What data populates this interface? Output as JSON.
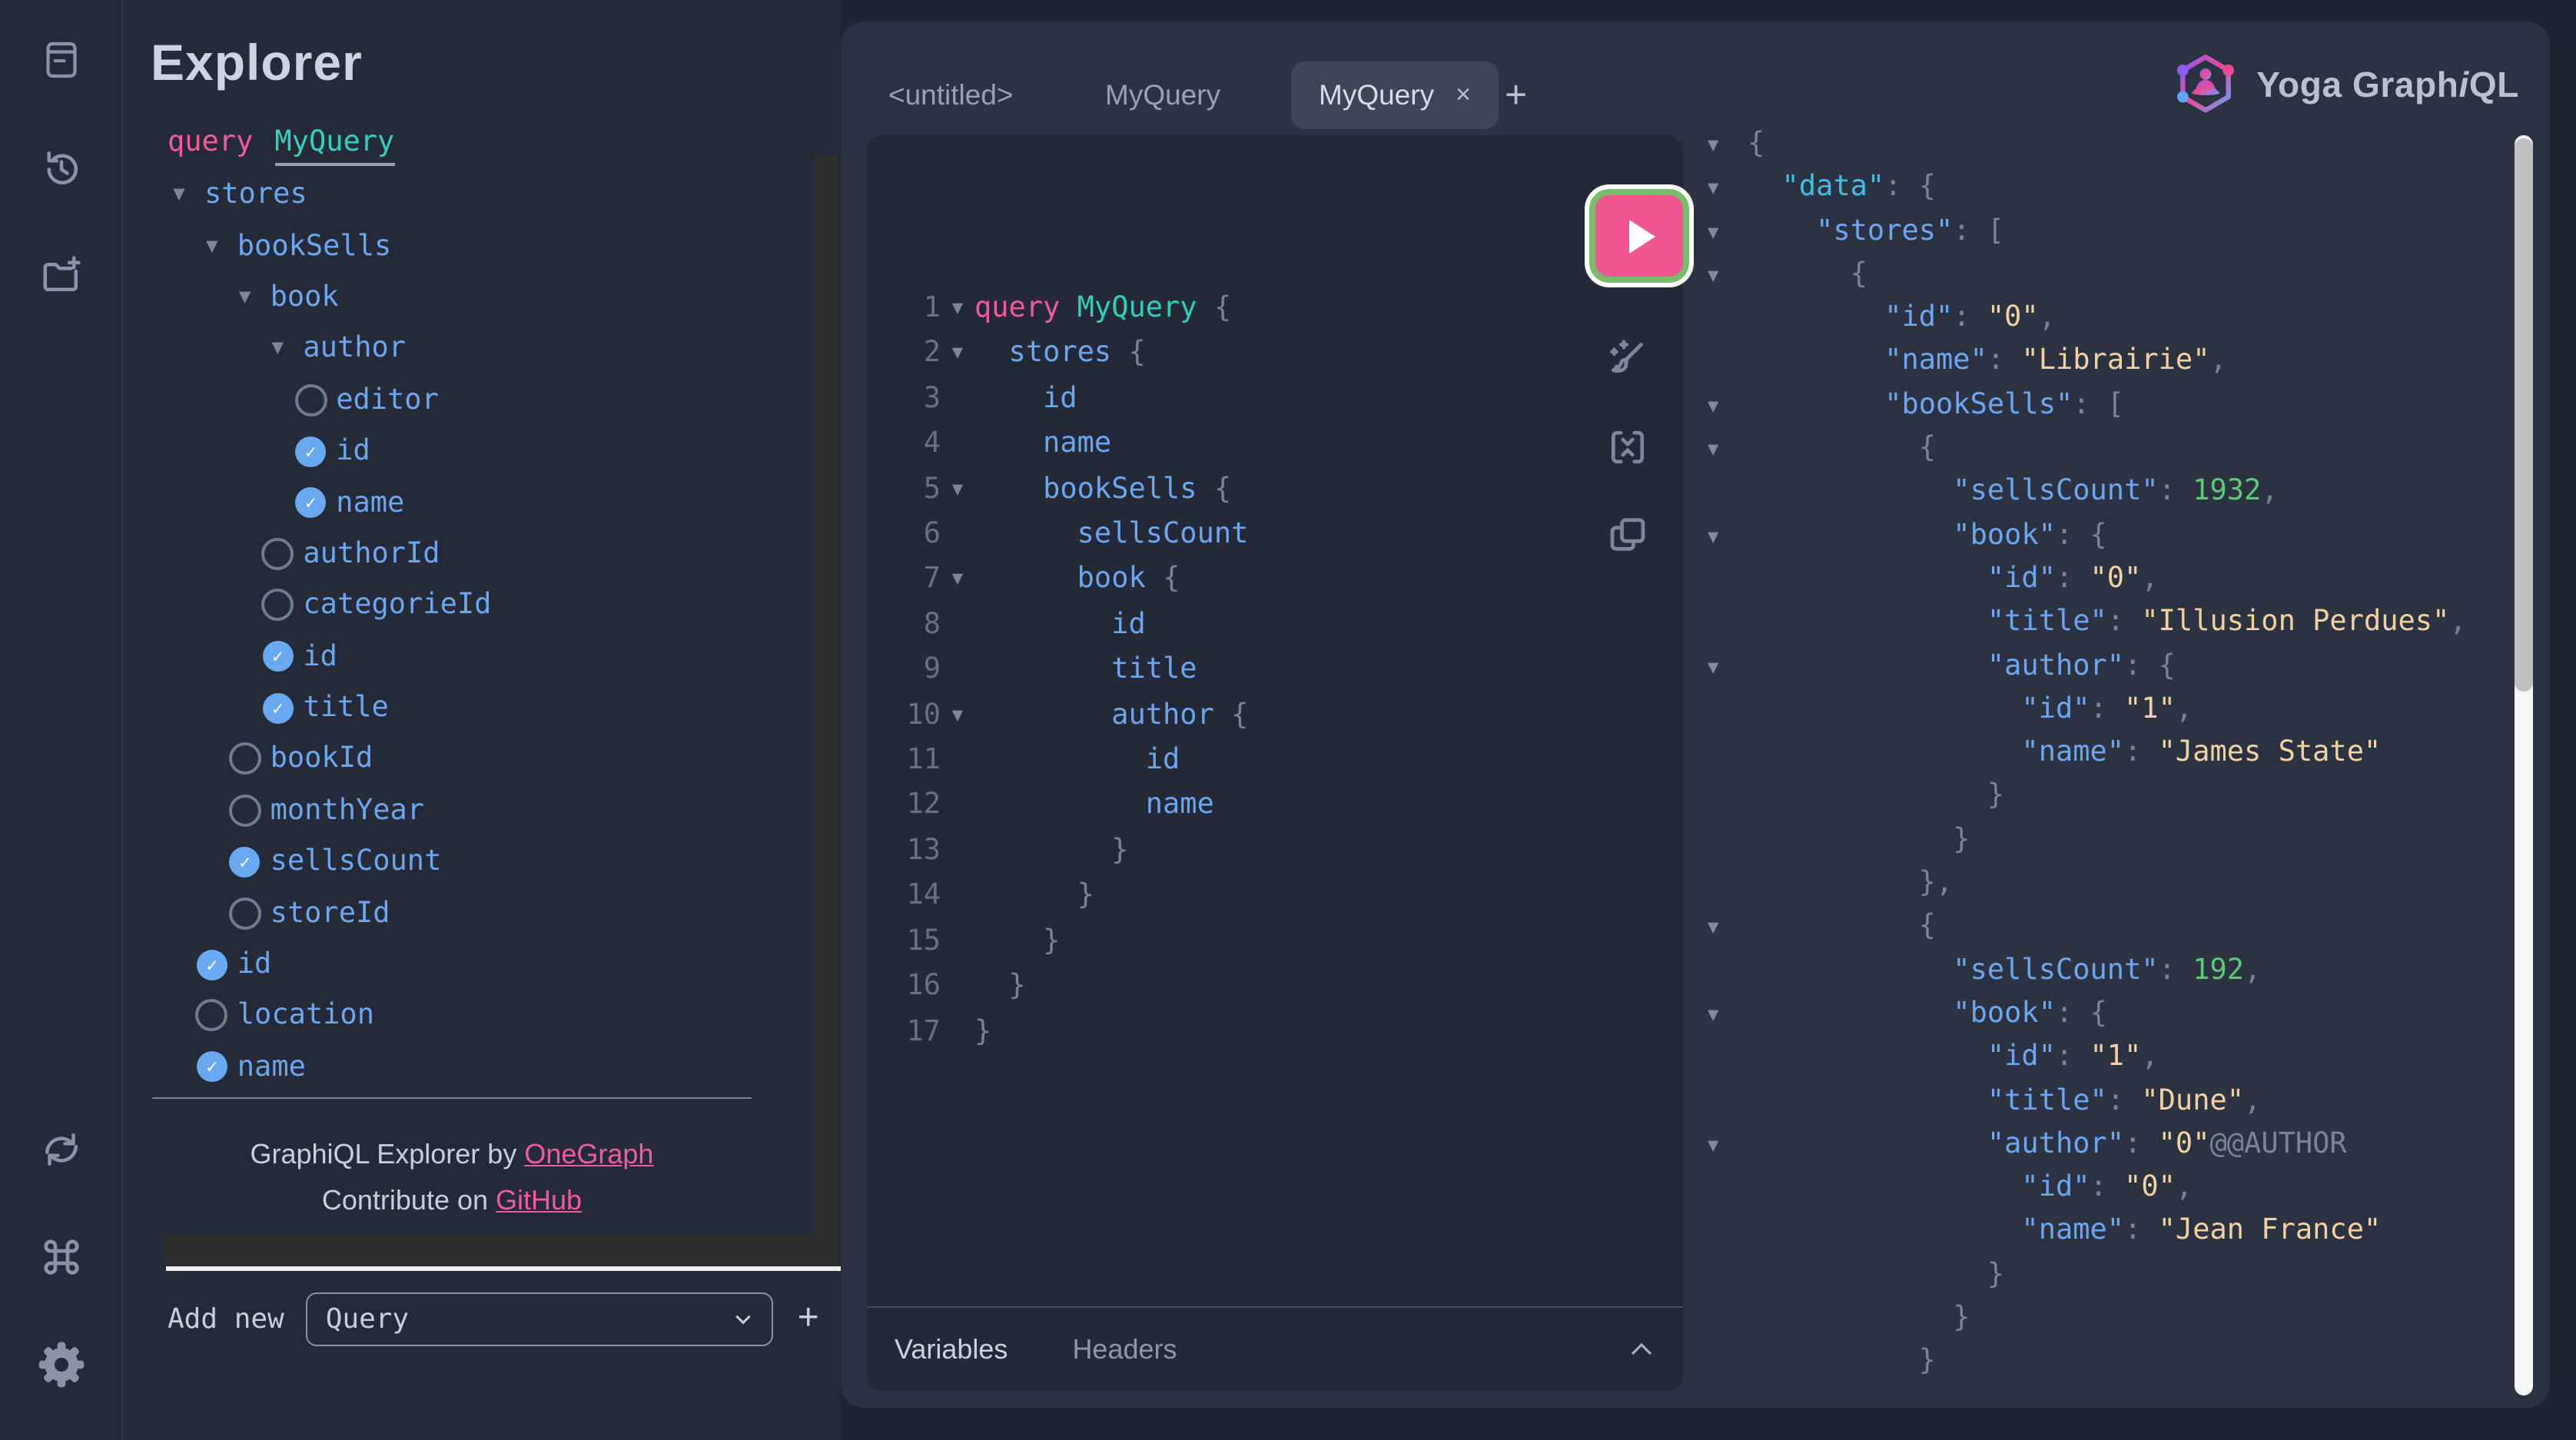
{
  "app": {
    "accent_pink": "#F25C96",
    "accent_teal": "#2FD0BD",
    "field_blue": "#6BA6EE",
    "string_tan": "#F2D1A0",
    "number_green": "#5FC878",
    "run_pink": "#F0558F",
    "run_green_ring": "#76BE69"
  },
  "sidebar": {
    "icons": [
      {
        "name": "docs-icon"
      },
      {
        "name": "history-icon"
      },
      {
        "name": "add-collection-icon"
      },
      {
        "name": "refetch-icon"
      },
      {
        "name": "shortcut-keys-icon"
      },
      {
        "name": "settings-icon"
      }
    ]
  },
  "explorer": {
    "title": "Explorer",
    "operation": {
      "keyword": "query",
      "name": "MyQuery"
    },
    "tree": [
      {
        "label": "stores",
        "depth": 0,
        "control": "expand"
      },
      {
        "label": "bookSells",
        "depth": 1,
        "control": "expand"
      },
      {
        "label": "book",
        "depth": 2,
        "control": "expand"
      },
      {
        "label": "author",
        "depth": 3,
        "control": "expand"
      },
      {
        "label": "editor",
        "depth": 4,
        "control": "radio"
      },
      {
        "label": "id",
        "depth": 4,
        "control": "check"
      },
      {
        "label": "name",
        "depth": 4,
        "control": "check"
      },
      {
        "label": "authorId",
        "depth": 3,
        "control": "radio"
      },
      {
        "label": "categorieId",
        "depth": 3,
        "control": "radio"
      },
      {
        "label": "id",
        "depth": 3,
        "control": "check"
      },
      {
        "label": "title",
        "depth": 3,
        "control": "check"
      },
      {
        "label": "bookId",
        "depth": 2,
        "control": "radio"
      },
      {
        "label": "monthYear",
        "depth": 2,
        "control": "radio"
      },
      {
        "label": "sellsCount",
        "depth": 2,
        "control": "check"
      },
      {
        "label": "storeId",
        "depth": 2,
        "control": "radio"
      },
      {
        "label": "id",
        "depth": 1,
        "control": "check"
      },
      {
        "label": "location",
        "depth": 1,
        "control": "radio"
      },
      {
        "label": "name",
        "depth": 1,
        "control": "check"
      }
    ],
    "footer": {
      "credit_prefix": "GraphiQL Explorer by ",
      "credit_link": "OneGraph",
      "contribute_prefix": "Contribute on ",
      "contribute_link": "GitHub"
    },
    "add_new": {
      "label": "Add new",
      "selected": "Query",
      "add_button": "+"
    }
  },
  "tabs": {
    "items": [
      "<untitled>",
      "MyQuery"
    ],
    "active": {
      "label": "MyQuery",
      "close": "×"
    },
    "add": "+"
  },
  "logo": {
    "prefix": "Yoga Graph",
    "italic": "i",
    "suffix": "QL"
  },
  "toolbar": {
    "run_label": "execute-query",
    "icons": [
      "prettify-icon",
      "merge-fragments-icon",
      "copy-query-icon"
    ]
  },
  "editor": {
    "lines": [
      {
        "n": "1",
        "fold": true,
        "segs": [
          [
            "k",
            "query "
          ],
          [
            "o",
            "MyQuery "
          ],
          [
            "b",
            "{"
          ]
        ]
      },
      {
        "n": "2",
        "fold": true,
        "segs": [
          [
            "f",
            "  stores "
          ],
          [
            "b",
            "{"
          ]
        ]
      },
      {
        "n": "3",
        "fold": false,
        "segs": [
          [
            "f",
            "    id"
          ]
        ]
      },
      {
        "n": "4",
        "fold": false,
        "segs": [
          [
            "f",
            "    name"
          ]
        ]
      },
      {
        "n": "5",
        "fold": true,
        "segs": [
          [
            "f",
            "    bookSells "
          ],
          [
            "b",
            "{"
          ]
        ]
      },
      {
        "n": "6",
        "fold": false,
        "segs": [
          [
            "f",
            "      sellsCount"
          ]
        ]
      },
      {
        "n": "7",
        "fold": true,
        "segs": [
          [
            "f",
            "      book "
          ],
          [
            "b",
            "{"
          ]
        ]
      },
      {
        "n": "8",
        "fold": false,
        "segs": [
          [
            "f",
            "        id"
          ]
        ]
      },
      {
        "n": "9",
        "fold": false,
        "segs": [
          [
            "f",
            "        title"
          ]
        ]
      },
      {
        "n": "10",
        "fold": true,
        "segs": [
          [
            "f",
            "        author "
          ],
          [
            "b",
            "{"
          ]
        ]
      },
      {
        "n": "11",
        "fold": false,
        "segs": [
          [
            "f",
            "          id"
          ]
        ]
      },
      {
        "n": "12",
        "fold": false,
        "segs": [
          [
            "f",
            "          name"
          ]
        ]
      },
      {
        "n": "13",
        "fold": false,
        "segs": [
          [
            "b",
            "        }"
          ]
        ]
      },
      {
        "n": "14",
        "fold": false,
        "segs": [
          [
            "b",
            "      }"
          ]
        ]
      },
      {
        "n": "15",
        "fold": false,
        "segs": [
          [
            "b",
            "    }"
          ]
        ]
      },
      {
        "n": "16",
        "fold": false,
        "segs": [
          [
            "b",
            "  }"
          ]
        ]
      },
      {
        "n": "17",
        "fold": false,
        "segs": [
          [
            "b",
            "}"
          ]
        ]
      }
    ]
  },
  "response": {
    "lines": [
      {
        "fold": true,
        "segs": [
          [
            "b",
            "{"
          ]
        ]
      },
      {
        "fold": true,
        "segs": [
          [
            "d",
            "  \"data\""
          ],
          [
            "p",
            ": "
          ],
          [
            "b",
            "{"
          ]
        ]
      },
      {
        "fold": true,
        "segs": [
          [
            "key",
            "    \"stores\""
          ],
          [
            "p",
            ": "
          ],
          [
            "b",
            "["
          ]
        ]
      },
      {
        "fold": true,
        "segs": [
          [
            "b",
            "      {"
          ]
        ]
      },
      {
        "fold": false,
        "segs": [
          [
            "key",
            "        \"id\""
          ],
          [
            "p",
            ": "
          ],
          [
            "s",
            "\"0\""
          ],
          [
            "p",
            ","
          ]
        ]
      },
      {
        "fold": false,
        "segs": [
          [
            "key",
            "        \"name\""
          ],
          [
            "p",
            ": "
          ],
          [
            "s",
            "\"Librairie\""
          ],
          [
            "p",
            ","
          ]
        ]
      },
      {
        "fold": true,
        "segs": [
          [
            "key",
            "        \"bookSells\""
          ],
          [
            "p",
            ": "
          ],
          [
            "b",
            "["
          ]
        ]
      },
      {
        "fold": true,
        "segs": [
          [
            "b",
            "          {"
          ]
        ]
      },
      {
        "fold": false,
        "segs": [
          [
            "key",
            "            \"sellsCount\""
          ],
          [
            "p",
            ": "
          ],
          [
            "n",
            "1932"
          ],
          [
            "p",
            ","
          ]
        ]
      },
      {
        "fold": true,
        "segs": [
          [
            "key",
            "            \"book\""
          ],
          [
            "p",
            ": "
          ],
          [
            "b",
            "{"
          ]
        ]
      },
      {
        "fold": false,
        "segs": [
          [
            "key",
            "              \"id\""
          ],
          [
            "p",
            ": "
          ],
          [
            "s",
            "\"0\""
          ],
          [
            "p",
            ","
          ]
        ]
      },
      {
        "fold": false,
        "segs": [
          [
            "key",
            "              \"title\""
          ],
          [
            "p",
            ": "
          ],
          [
            "s",
            "\"Illusion Perdues\""
          ],
          [
            "p",
            ","
          ]
        ]
      },
      {
        "fold": true,
        "segs": [
          [
            "key",
            "              \"author\""
          ],
          [
            "p",
            ": "
          ],
          [
            "b",
            "{"
          ]
        ]
      },
      {
        "fold": false,
        "segs": [
          [
            "key",
            "                \"id\""
          ],
          [
            "p",
            ": "
          ],
          [
            "s",
            "\"1\""
          ],
          [
            "p",
            ","
          ]
        ]
      },
      {
        "fold": false,
        "segs": [
          [
            "key",
            "                \"name\""
          ],
          [
            "p",
            ": "
          ],
          [
            "s",
            "\"James State\""
          ]
        ]
      },
      {
        "fold": false,
        "segs": [
          [
            "b",
            "              }"
          ]
        ]
      },
      {
        "fold": false,
        "segs": [
          [
            "b",
            "            }"
          ]
        ]
      },
      {
        "fold": false,
        "segs": [
          [
            "b",
            "          },"
          ]
        ]
      },
      {
        "fold": true,
        "segs": [
          [
            "b",
            "          {"
          ]
        ]
      },
      {
        "fold": false,
        "segs": [
          [
            "key",
            "            \"sellsCount\""
          ],
          [
            "p",
            ": "
          ],
          [
            "n",
            "192"
          ],
          [
            "p",
            ","
          ]
        ]
      },
      {
        "fold": true,
        "segs": [
          [
            "key",
            "            \"book\""
          ],
          [
            "p",
            ": "
          ],
          [
            "b",
            "{"
          ]
        ]
      },
      {
        "fold": false,
        "segs": [
          [
            "key",
            "              \"id\""
          ],
          [
            "p",
            ": "
          ],
          [
            "s",
            "\"1\""
          ],
          [
            "p",
            ","
          ]
        ]
      },
      {
        "fold": false,
        "segs": [
          [
            "key",
            "              \"title\""
          ],
          [
            "p",
            ": "
          ],
          [
            "s",
            "\"Dune\""
          ],
          [
            "p",
            ","
          ]
        ]
      },
      {
        "fold": true,
        "segs": [
          [
            "key",
            "              \"author\""
          ],
          [
            "p",
            ": "
          ],
          [
            "s",
            "\"0\""
          ],
          [
            "p",
            "@@AUTHOR"
          ]
        ]
      },
      {
        "fold": false,
        "segs": [
          [
            "key",
            "                \"id\""
          ],
          [
            "p",
            ": "
          ],
          [
            "s",
            "\"0\""
          ],
          [
            "p",
            ","
          ]
        ]
      },
      {
        "fold": false,
        "segs": [
          [
            "key",
            "                \"name\""
          ],
          [
            "p",
            ": "
          ],
          [
            "s",
            "\"Jean France\""
          ]
        ]
      },
      {
        "fold": false,
        "segs": [
          [
            "b",
            "              }"
          ]
        ]
      },
      {
        "fold": false,
        "segs": [
          [
            "b",
            "            }"
          ]
        ]
      },
      {
        "fold": false,
        "segs": [
          [
            "b",
            "          }"
          ]
        ]
      }
    ]
  },
  "footer_bar": {
    "variables": "Variables",
    "headers": "Headers"
  }
}
